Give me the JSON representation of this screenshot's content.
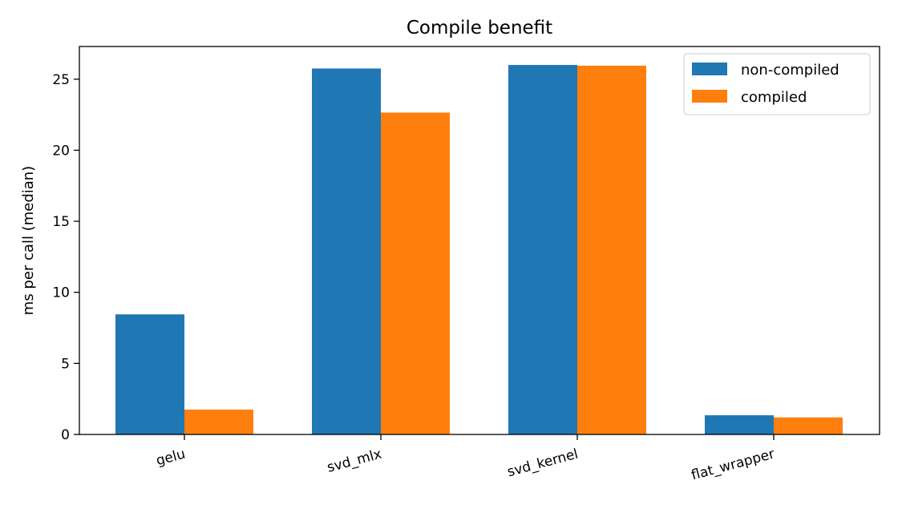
{
  "chart_data": {
    "type": "bar",
    "title": "Compile benefit",
    "xlabel": "",
    "ylabel": "ms per call (median)",
    "categories": [
      "gelu",
      "svd_mlx",
      "svd_kernel",
      "flat_wrapper"
    ],
    "series": [
      {
        "name": "non-compiled",
        "color": "#1f77b4",
        "values": [
          8.45,
          25.75,
          26.0,
          1.35
        ]
      },
      {
        "name": "compiled",
        "color": "#ff7f0e",
        "values": [
          1.75,
          22.65,
          25.95,
          1.2
        ]
      }
    ],
    "ylim": [
      0,
      27.3
    ],
    "yticks": [
      0,
      5,
      10,
      15,
      20,
      25
    ],
    "grid": false,
    "legend_position": "top-right"
  }
}
